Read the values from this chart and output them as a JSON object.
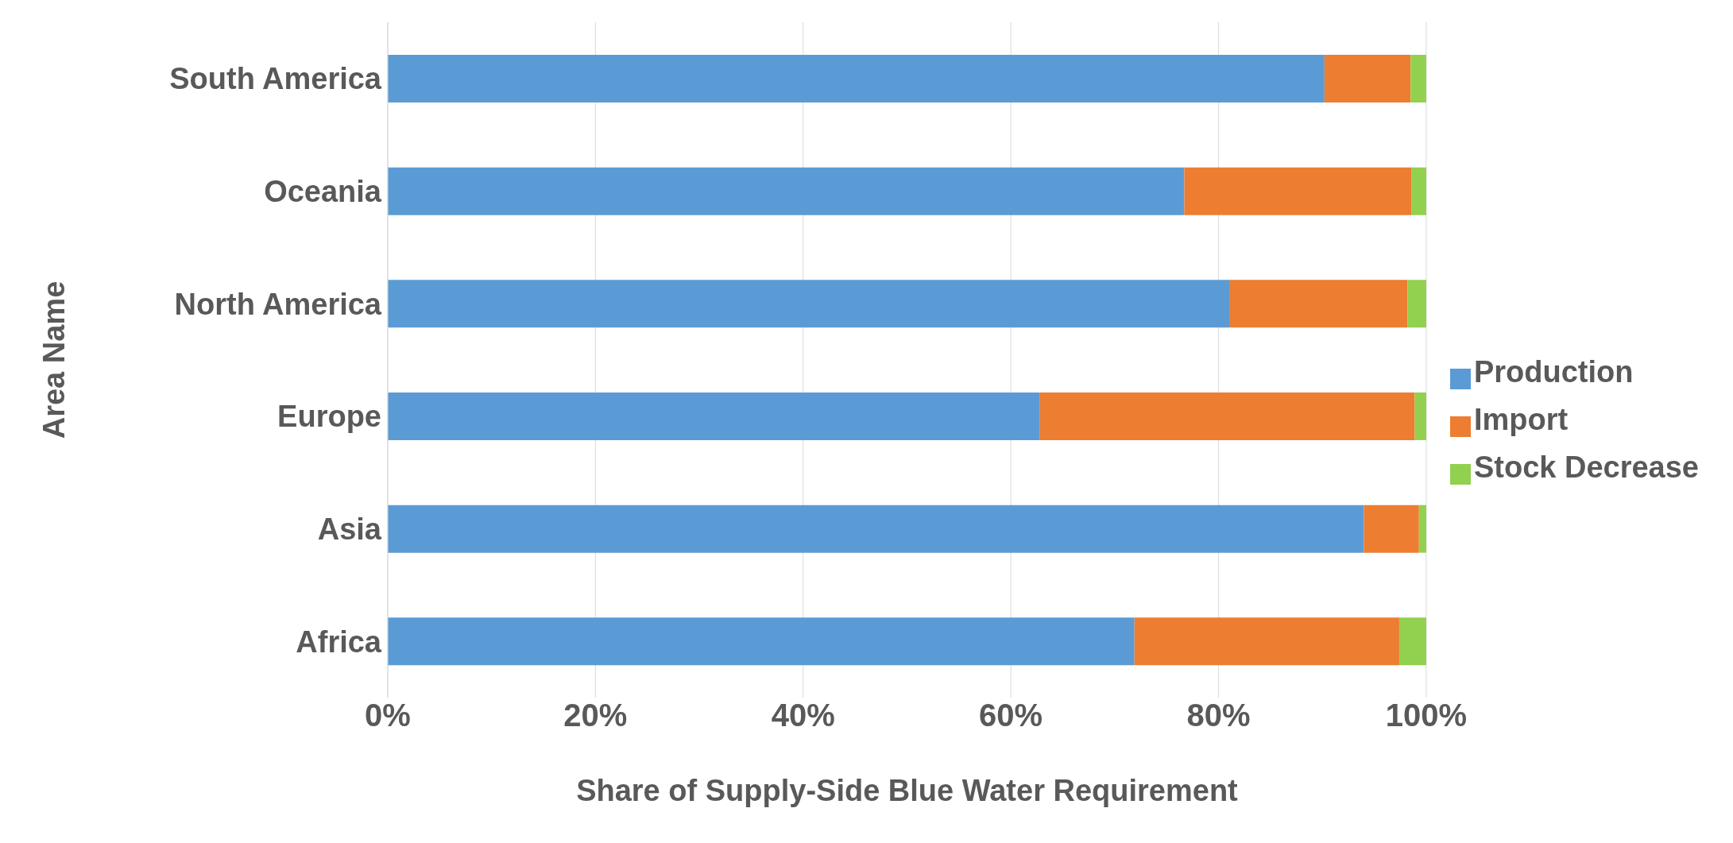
{
  "chart_data": {
    "type": "bar",
    "orientation": "horizontal",
    "stacked": true,
    "xlabel": "Share of Supply-Side Blue Water Requirement",
    "ylabel": "Area Name",
    "categories": [
      "South America",
      "Oceania",
      "North America",
      "Europe",
      "Asia",
      "Africa"
    ],
    "series": [
      {
        "name": "Production",
        "color": "#5b9bd5",
        "values": [
          90.2,
          76.7,
          81.1,
          62.8,
          94.0,
          71.9
        ]
      },
      {
        "name": "Import",
        "color": "#ed7d31",
        "values": [
          8.3,
          21.9,
          17.1,
          36.1,
          5.3,
          25.5
        ]
      },
      {
        "name": "Stock Decrease",
        "color": "#92d050",
        "values": [
          1.5,
          1.4,
          1.8,
          1.1,
          0.7,
          2.6
        ]
      }
    ],
    "xlim": [
      0,
      100
    ],
    "xticks": [
      {
        "value": 0,
        "label": "0%"
      },
      {
        "value": 20,
        "label": "20%"
      },
      {
        "value": 40,
        "label": "40%"
      },
      {
        "value": 60,
        "label": "60%"
      },
      {
        "value": 80,
        "label": "80%"
      },
      {
        "value": 100,
        "label": "100%"
      }
    ],
    "grid": "x",
    "legend": "right"
  }
}
